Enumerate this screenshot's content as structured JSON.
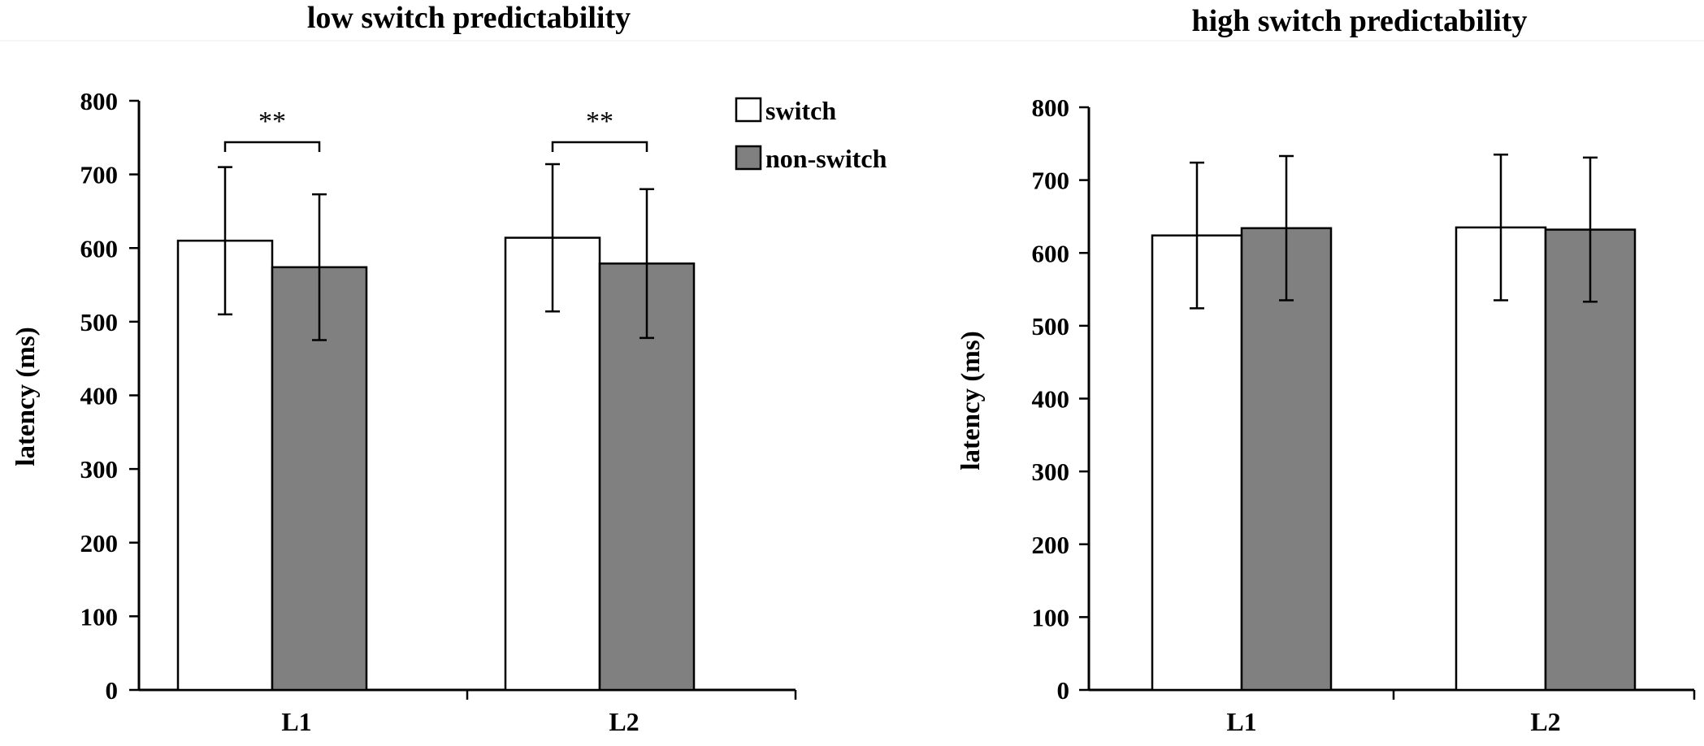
{
  "chart_data": [
    {
      "type": "bar",
      "title": "low switch predictability",
      "xlabel": "",
      "ylabel": "latency (ms)",
      "ylim": [
        0,
        800
      ],
      "yticks": [
        0,
        100,
        200,
        300,
        400,
        500,
        600,
        700,
        800
      ],
      "categories": [
        "L1",
        "L2"
      ],
      "series": [
        {
          "name": "switch",
          "color": "#ffffff",
          "values": [
            610,
            614
          ],
          "errors": [
            100,
            100
          ]
        },
        {
          "name": "non-switch",
          "color": "#808080",
          "values": [
            574,
            579
          ],
          "errors": [
            99,
            101
          ]
        }
      ],
      "legend": {
        "position": "top-right",
        "entries": [
          "switch",
          "non-switch"
        ]
      },
      "annotations": [
        {
          "category": "L1",
          "text": "**"
        },
        {
          "category": "L2",
          "text": "**"
        }
      ]
    },
    {
      "type": "bar",
      "title": "high switch predictability",
      "xlabel": "",
      "ylabel": "latency (ms)",
      "ylim": [
        0,
        800
      ],
      "yticks": [
        0,
        100,
        200,
        300,
        400,
        500,
        600,
        700,
        800
      ],
      "categories": [
        "L1",
        "L2"
      ],
      "series": [
        {
          "name": "switch",
          "color": "#ffffff",
          "values": [
            624,
            635
          ],
          "errors": [
            100,
            100
          ]
        },
        {
          "name": "non-switch",
          "color": "#808080",
          "values": [
            634,
            632
          ],
          "errors": [
            99,
            99
          ]
        }
      ],
      "annotations": []
    }
  ]
}
